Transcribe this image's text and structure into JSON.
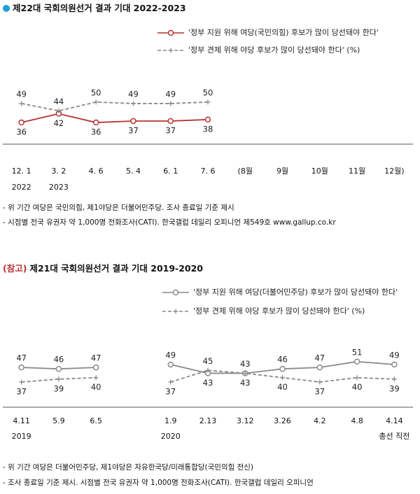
{
  "chart_data": [
    {
      "type": "line",
      "title": "제22대 국회의원선거 결과 기대 2022-2023",
      "categories": [
        "12. 1",
        "3. 2",
        "4. 6",
        "5. 4",
        "6. 1",
        "7. 6",
        "(8월",
        "9월",
        "10월",
        "11월",
        "12월)"
      ],
      "x_sublabels": [
        "2022",
        "2023",
        null,
        null,
        null,
        null,
        null,
        null,
        null,
        null,
        null
      ],
      "series": [
        {
          "name": "'정부 지원 위해 여당(국민의힘) 후보가 많이 당선돼야 한다'",
          "color": "#b5322e",
          "label_color": "#444444",
          "dash": false,
          "marker": "circle",
          "values": [
            36,
            42,
            36,
            37,
            37,
            38,
            null,
            null,
            null,
            null,
            null
          ]
        },
        {
          "name": "'정부 견제 위해 야당 후보가 많이 당선돼야 한다' (%)",
          "color": "#8a8a8a",
          "label_color": "#1e9be0",
          "dash": true,
          "marker": "plus",
          "values": [
            49,
            44,
            50,
            49,
            49,
            50,
            null,
            null,
            null,
            null,
            null
          ]
        }
      ],
      "ylim": [
        25,
        60
      ],
      "notes": [
        "- 위 기간 여당은 국민의힘, 제1야당은 더불어민주당. 조사 종료일 기준 제시",
        "- 시점별 전국 유권자 약 1,000명 전화조사(CATI). 한국갤럽 데일리 오피니언 제549호 www.gallup.co.kr"
      ]
    },
    {
      "type": "line",
      "title_prefix": "(참고)",
      "title": "제21대 국회의원선거 결과 기대 2019-2020",
      "categories": [
        "4.11",
        "5.9",
        "6.5",
        null,
        "1.9",
        "2.13",
        "3.12",
        "3.26",
        "4.2",
        "4.8",
        "4.14"
      ],
      "x_sublabels": [
        "2019",
        null,
        null,
        null,
        "2020",
        null,
        null,
        null,
        null,
        null,
        "총선 직전"
      ],
      "series": [
        {
          "name": "'정부 지원 위해 여당(더불어민주당) 후보가 많이 당선돼야 한다'",
          "color": "#8a8a8a",
          "label_color": "#444444",
          "dash": false,
          "marker": "circle",
          "values": [
            47,
            46,
            47,
            null,
            49,
            43,
            43,
            46,
            47,
            51,
            49
          ]
        },
        {
          "name": "'정부 견제 위해 야당 후보가 많이 당선돼야 한다' (%)",
          "color": "#8a8a8a",
          "label_color": "#a52a2a",
          "dash": true,
          "marker": "plus",
          "values": [
            37,
            39,
            40,
            null,
            37,
            45,
            43,
            40,
            37,
            40,
            39
          ]
        }
      ],
      "ylim": [
        25,
        60
      ],
      "notes": [
        "- 위 기간 여당은 더불어민주당, 제1야당은 자유한국당/미래통합당(국민의힘 전신)",
        "- 조사 종료일 기준 제시. 시점별 전국 유권자 약 1,000명 전화조사(CATI). 한국갤럽 데일리 오피니언"
      ]
    }
  ]
}
